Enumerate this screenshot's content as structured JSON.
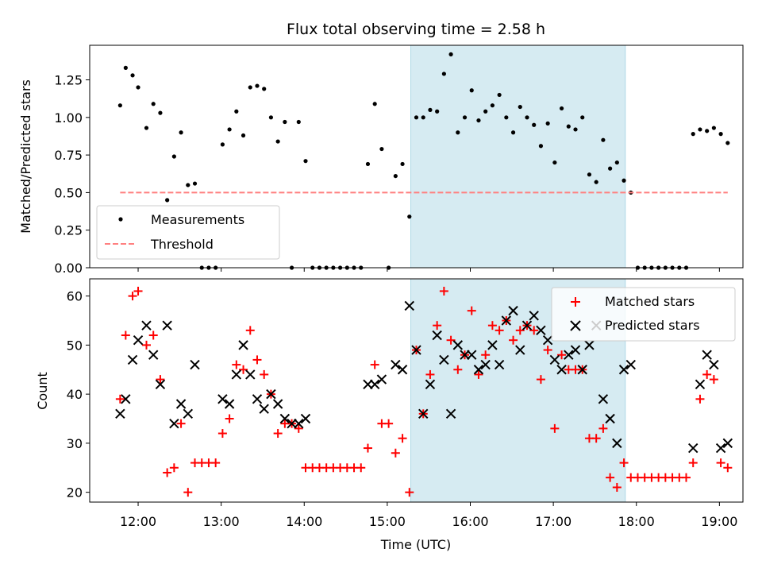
{
  "figure": {
    "title": "Flux total observing time = 2.58 h",
    "shaded_span": {
      "start": "15:17",
      "end": "17:52",
      "color": "#add8e6"
    }
  },
  "chart_data": [
    {
      "type": "scatter",
      "ylabel": "Matched/Predicted stars",
      "xlim": [
        "11:25",
        "19:17"
      ],
      "ylim": [
        0,
        1.48
      ],
      "yticks": [
        "0.00",
        "0.25",
        "0.50",
        "0.75",
        "1.00",
        "1.25"
      ],
      "grid": false,
      "legend_placement": "lower-left",
      "series": [
        {
          "name": "Measurements",
          "marker": "dot",
          "color": "#000000",
          "points": [
            [
              "11:47",
              1.08
            ],
            [
              "11:51",
              1.33
            ],
            [
              "11:56",
              1.28
            ],
            [
              "12:00",
              1.2
            ],
            [
              "12:06",
              0.93
            ],
            [
              "12:11",
              1.09
            ],
            [
              "12:16",
              1.03
            ],
            [
              "12:21",
              0.45
            ],
            [
              "12:26",
              0.74
            ],
            [
              "12:31",
              0.9
            ],
            [
              "12:36",
              0.55
            ],
            [
              "12:41",
              0.56
            ],
            [
              "12:46",
              0.0
            ],
            [
              "12:51",
              0.0
            ],
            [
              "12:56",
              0.0
            ],
            [
              "13:01",
              0.82
            ],
            [
              "13:06",
              0.92
            ],
            [
              "13:11",
              1.04
            ],
            [
              "13:16",
              0.88
            ],
            [
              "13:21",
              1.2
            ],
            [
              "13:26",
              1.21
            ],
            [
              "13:31",
              1.19
            ],
            [
              "13:36",
              1.0
            ],
            [
              "13:41",
              0.84
            ],
            [
              "13:46",
              0.97
            ],
            [
              "13:51",
              0.0
            ],
            [
              "13:56",
              0.97
            ],
            [
              "14:01",
              0.71
            ],
            [
              "14:06",
              0.0
            ],
            [
              "14:11",
              0.0
            ],
            [
              "14:16",
              0.0
            ],
            [
              "14:21",
              0.0
            ],
            [
              "14:26",
              0.0
            ],
            [
              "14:31",
              0.0
            ],
            [
              "14:36",
              0.0
            ],
            [
              "14:41",
              0.0
            ],
            [
              "14:46",
              0.69
            ],
            [
              "14:51",
              1.09
            ],
            [
              "14:56",
              0.79
            ],
            [
              "15:01",
              0.0
            ],
            [
              "15:06",
              0.61
            ],
            [
              "15:11",
              0.69
            ],
            [
              "15:16",
              0.34
            ],
            [
              "15:21",
              1.0
            ],
            [
              "15:26",
              1.0
            ],
            [
              "15:31",
              1.05
            ],
            [
              "15:36",
              1.04
            ],
            [
              "15:41",
              1.29
            ],
            [
              "15:46",
              1.42
            ],
            [
              "15:51",
              0.9
            ],
            [
              "15:56",
              1.0
            ],
            [
              "16:01",
              1.18
            ],
            [
              "16:06",
              0.98
            ],
            [
              "16:11",
              1.04
            ],
            [
              "16:16",
              1.08
            ],
            [
              "16:21",
              1.15
            ],
            [
              "16:26",
              1.0
            ],
            [
              "16:31",
              0.9
            ],
            [
              "16:36",
              1.07
            ],
            [
              "16:41",
              1.0
            ],
            [
              "16:46",
              0.95
            ],
            [
              "16:51",
              0.81
            ],
            [
              "16:56",
              0.96
            ],
            [
              "17:01",
              0.7
            ],
            [
              "17:06",
              1.06
            ],
            [
              "17:11",
              0.94
            ],
            [
              "17:16",
              0.92
            ],
            [
              "17:21",
              1.0
            ],
            [
              "17:26",
              0.62
            ],
            [
              "17:31",
              0.57
            ],
            [
              "17:36",
              0.85
            ],
            [
              "17:41",
              0.66
            ],
            [
              "17:46",
              0.7
            ],
            [
              "17:51",
              0.58
            ],
            [
              "17:56",
              0.5
            ],
            [
              "18:01",
              0.0
            ],
            [
              "18:06",
              0.0
            ],
            [
              "18:11",
              0.0
            ],
            [
              "18:16",
              0.0
            ],
            [
              "18:21",
              0.0
            ],
            [
              "18:26",
              0.0
            ],
            [
              "18:31",
              0.0
            ],
            [
              "18:36",
              0.0
            ],
            [
              "18:41",
              0.89
            ],
            [
              "18:46",
              0.92
            ],
            [
              "18:51",
              0.91
            ],
            [
              "18:56",
              0.93
            ],
            [
              "19:01",
              0.89
            ],
            [
              "19:06",
              0.83
            ]
          ]
        },
        {
          "name": "Threshold",
          "marker": "dashed-line",
          "color": "#ff8080",
          "points": [
            [
              "11:47",
              0.5
            ],
            [
              "19:06",
              0.5
            ]
          ]
        }
      ]
    },
    {
      "type": "scatter",
      "xlabel": "Time (UTC)",
      "ylabel": "Count",
      "xlim": [
        "11:25",
        "19:17"
      ],
      "ylim": [
        18,
        63.5
      ],
      "xticks": [
        "12:00",
        "13:00",
        "14:00",
        "15:00",
        "16:00",
        "17:00",
        "18:00",
        "19:00"
      ],
      "yticks": [
        "20",
        "30",
        "40",
        "50",
        "60"
      ],
      "grid": false,
      "legend_placement": "top-right",
      "series": [
        {
          "name": "Matched stars",
          "marker": "plus",
          "color": "#ff0000",
          "points": [
            [
              "11:47",
              39
            ],
            [
              "11:51",
              52
            ],
            [
              "11:56",
              60
            ],
            [
              "12:00",
              61
            ],
            [
              "12:06",
              50
            ],
            [
              "12:11",
              52
            ],
            [
              "12:16",
              43
            ],
            [
              "12:21",
              24
            ],
            [
              "12:26",
              25
            ],
            [
              "12:31",
              34
            ],
            [
              "12:36",
              20
            ],
            [
              "12:41",
              26
            ],
            [
              "12:46",
              26
            ],
            [
              "12:51",
              26
            ],
            [
              "12:56",
              26
            ],
            [
              "13:01",
              32
            ],
            [
              "13:06",
              35
            ],
            [
              "13:11",
              46
            ],
            [
              "13:16",
              45
            ],
            [
              "13:21",
              53
            ],
            [
              "13:26",
              47
            ],
            [
              "13:31",
              44
            ],
            [
              "13:36",
              40
            ],
            [
              "13:41",
              32
            ],
            [
              "13:46",
              34
            ],
            [
              "13:51",
              34
            ],
            [
              "13:56",
              33
            ],
            [
              "14:01",
              25
            ],
            [
              "14:06",
              25
            ],
            [
              "14:11",
              25
            ],
            [
              "14:16",
              25
            ],
            [
              "14:21",
              25
            ],
            [
              "14:26",
              25
            ],
            [
              "14:31",
              25
            ],
            [
              "14:36",
              25
            ],
            [
              "14:41",
              25
            ],
            [
              "14:46",
              29
            ],
            [
              "14:51",
              46
            ],
            [
              "14:56",
              34
            ],
            [
              "15:01",
              34
            ],
            [
              "15:06",
              28
            ],
            [
              "15:11",
              31
            ],
            [
              "15:16",
              20
            ],
            [
              "15:21",
              49
            ],
            [
              "15:26",
              36
            ],
            [
              "15:31",
              44
            ],
            [
              "15:36",
              54
            ],
            [
              "15:41",
              61
            ],
            [
              "15:46",
              51
            ],
            [
              "15:51",
              45
            ],
            [
              "15:56",
              48
            ],
            [
              "16:01",
              57
            ],
            [
              "16:06",
              44
            ],
            [
              "16:11",
              48
            ],
            [
              "16:16",
              54
            ],
            [
              "16:21",
              53
            ],
            [
              "16:26",
              55
            ],
            [
              "16:31",
              51
            ],
            [
              "16:36",
              53
            ],
            [
              "16:41",
              54
            ],
            [
              "16:46",
              53
            ],
            [
              "16:51",
              43
            ],
            [
              "16:56",
              49
            ],
            [
              "17:01",
              33
            ],
            [
              "17:06",
              48
            ],
            [
              "17:11",
              45
            ],
            [
              "17:16",
              45
            ],
            [
              "17:21",
              45
            ],
            [
              "17:26",
              31
            ],
            [
              "17:31",
              31
            ],
            [
              "17:36",
              33
            ],
            [
              "17:41",
              23
            ],
            [
              "17:46",
              21
            ],
            [
              "17:51",
              26
            ],
            [
              "17:56",
              23
            ],
            [
              "18:01",
              23
            ],
            [
              "18:06",
              23
            ],
            [
              "18:11",
              23
            ],
            [
              "18:16",
              23
            ],
            [
              "18:21",
              23
            ],
            [
              "18:26",
              23
            ],
            [
              "18:31",
              23
            ],
            [
              "18:36",
              23
            ],
            [
              "18:41",
              26
            ],
            [
              "18:46",
              39
            ],
            [
              "18:51",
              44
            ],
            [
              "18:56",
              43
            ],
            [
              "19:01",
              26
            ],
            [
              "19:06",
              25
            ]
          ]
        },
        {
          "name": "Predicted stars",
          "marker": "x",
          "color": "#000000",
          "points": [
            [
              "11:47",
              36
            ],
            [
              "11:51",
              39
            ],
            [
              "11:56",
              47
            ],
            [
              "12:00",
              51
            ],
            [
              "12:06",
              54
            ],
            [
              "12:11",
              48
            ],
            [
              "12:16",
              42
            ],
            [
              "12:21",
              54
            ],
            [
              "12:26",
              34
            ],
            [
              "12:31",
              38
            ],
            [
              "12:36",
              36
            ],
            [
              "12:41",
              46
            ],
            [
              "13:01",
              39
            ],
            [
              "13:06",
              38
            ],
            [
              "13:11",
              44
            ],
            [
              "13:16",
              50
            ],
            [
              "13:21",
              44
            ],
            [
              "13:26",
              39
            ],
            [
              "13:31",
              37
            ],
            [
              "13:36",
              40
            ],
            [
              "13:41",
              38
            ],
            [
              "13:46",
              35
            ],
            [
              "13:51",
              34
            ],
            [
              "13:56",
              34
            ],
            [
              "14:01",
              35
            ],
            [
              "14:46",
              42
            ],
            [
              "14:51",
              42
            ],
            [
              "14:56",
              43
            ],
            [
              "15:06",
              46
            ],
            [
              "15:11",
              45
            ],
            [
              "15:16",
              58
            ],
            [
              "15:21",
              49
            ],
            [
              "15:26",
              36
            ],
            [
              "15:31",
              42
            ],
            [
              "15:36",
              52
            ],
            [
              "15:41",
              47
            ],
            [
              "15:46",
              36
            ],
            [
              "15:51",
              50
            ],
            [
              "15:56",
              48
            ],
            [
              "16:01",
              48
            ],
            [
              "16:06",
              45
            ],
            [
              "16:11",
              46
            ],
            [
              "16:16",
              50
            ],
            [
              "16:21",
              46
            ],
            [
              "16:26",
              55
            ],
            [
              "16:31",
              57
            ],
            [
              "16:36",
              49
            ],
            [
              "16:41",
              54
            ],
            [
              "16:46",
              56
            ],
            [
              "16:51",
              53
            ],
            [
              "16:56",
              51
            ],
            [
              "17:01",
              47
            ],
            [
              "17:06",
              45
            ],
            [
              "17:11",
              48
            ],
            [
              "17:16",
              49
            ],
            [
              "17:21",
              45
            ],
            [
              "17:26",
              50
            ],
            [
              "17:31",
              54
            ],
            [
              "17:36",
              39
            ],
            [
              "17:41",
              35
            ],
            [
              "17:46",
              30
            ],
            [
              "17:51",
              45
            ],
            [
              "17:56",
              46
            ],
            [
              "18:41",
              29
            ],
            [
              "18:46",
              42
            ],
            [
              "18:51",
              48
            ],
            [
              "18:56",
              46
            ],
            [
              "19:01",
              29
            ],
            [
              "19:06",
              30
            ]
          ]
        }
      ]
    }
  ]
}
